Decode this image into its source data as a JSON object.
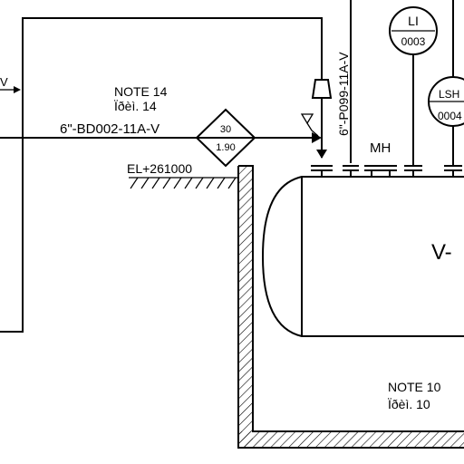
{
  "drawing": {
    "stroke_color": "#000000",
    "background": "#ffffff"
  },
  "labels": {
    "note_top": "NOTE 14",
    "note_top_sub": "Ïðèì. 14",
    "line_horizontal": "6\"-BD002-11A-V",
    "line_vertical": "6\"-P099-11A-V",
    "elevation": "EL+261000",
    "manhole": "MH",
    "vessel_tag": "V-",
    "note_bottom": "NOTE 10",
    "note_bottom_sub": "Ïðèì. 10",
    "flow_arrow_left": "V"
  },
  "diamond_marker": {
    "top_value": "30",
    "bottom_value": "1.90"
  },
  "instruments": [
    {
      "letters": "LI",
      "number": "0003"
    },
    {
      "letters": "LSH",
      "number": "0004"
    }
  ]
}
